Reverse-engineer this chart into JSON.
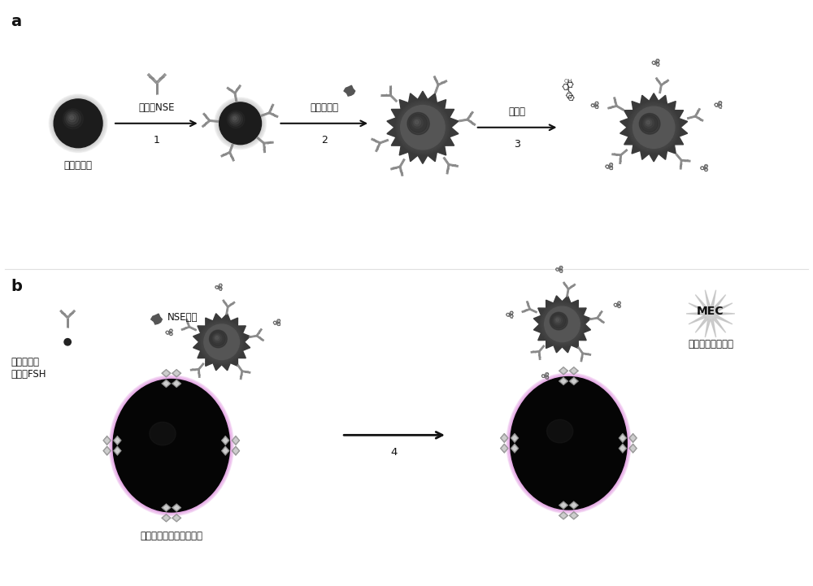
{
  "bg_color": "#ffffff",
  "label_a": "a",
  "label_b": "b",
  "step1_label": "鼠抗人NSE",
  "step1_num": "1",
  "step2_label": "隔离层材料",
  "step2_num": "2",
  "step3_label": "吖啶酯",
  "step3_num": "3",
  "step4_num": "4",
  "gold_np_label": "金纳米粒子",
  "biotin_label": "生物素标记\n鼠抗人FSH",
  "NSE_antigen_label": "NSE抗原",
  "MEC_label": "MEC",
  "metal_label": "金属增强化学发光",
  "magnetic_label": "链亲和素包被的磁性微球",
  "sphere_dark": "#1c1c1c",
  "sphere_mid": "#383838",
  "gear_dark": "#3a3a3a",
  "gear_mid": "#555555",
  "antibody_color": "#888888",
  "strep_color": "#aaaaaa",
  "strep_light": "#d8d8d8",
  "strep_dark": "#888888",
  "acrid_color": "#555555",
  "arrow_color": "#111111",
  "text_color": "#111111",
  "divider_color": "#cccccc",
  "mec_color": "#c8c8c8",
  "magenta_edge": "#cc44cc"
}
